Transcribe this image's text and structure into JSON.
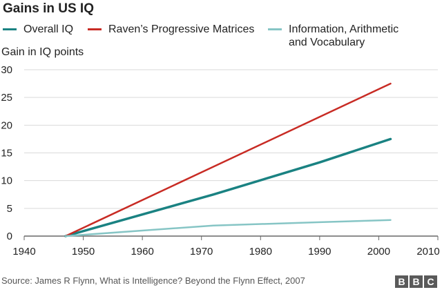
{
  "header": {
    "title": "Gains in US IQ",
    "ylabel": "Gain in IQ points"
  },
  "footer": {
    "source": "Source: James R Flynn, What is Intelligence? Beyond the Flynn Effect, 2007",
    "logo": [
      "B",
      "B",
      "C"
    ]
  },
  "chart_data": {
    "type": "line",
    "title": "Gains in US IQ",
    "ylabel": "Gain in IQ points",
    "xlabel": "",
    "xlim": [
      1940,
      2010
    ],
    "ylim": [
      0,
      30
    ],
    "x_ticks": [
      1940,
      1950,
      1960,
      1970,
      1980,
      1990,
      2000,
      2010
    ],
    "y_ticks": [
      0,
      5,
      10,
      15,
      20,
      25,
      30
    ],
    "grid": "horizontal",
    "legend": "top",
    "series": [
      {
        "name": "Overall IQ",
        "color": "#1a8282",
        "x": [
          1947,
          1960,
          1972,
          1990,
          2002
        ],
        "y": [
          0,
          3.9,
          7.5,
          13.3,
          17.5
        ]
      },
      {
        "name": "Raven’s Progressive Matrices",
        "color": "#c82b24",
        "x": [
          1947,
          2002
        ],
        "y": [
          0,
          27.5
        ]
      },
      {
        "name": "Information, Arithmetic and Vocabulary",
        "label_lines": [
          "Information, Arithmetic",
          "and Vocabulary"
        ],
        "color": "#86c5c5",
        "x": [
          1947,
          1960,
          1972,
          1990,
          2002
        ],
        "y": [
          0,
          1.0,
          1.9,
          2.5,
          2.9
        ]
      }
    ]
  }
}
